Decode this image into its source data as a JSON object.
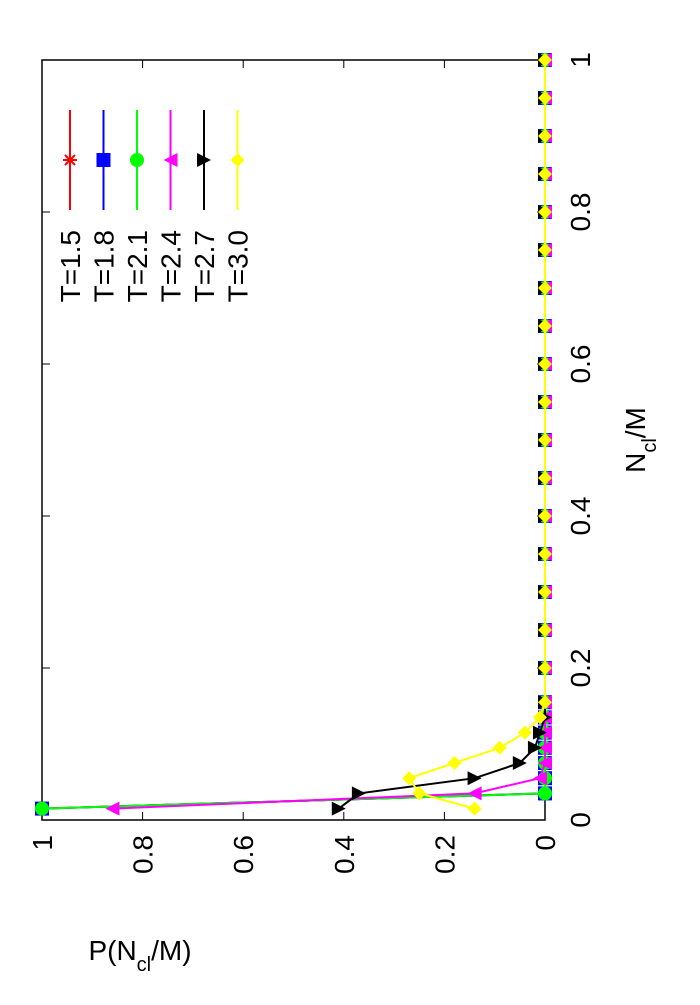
{
  "chart_data": {
    "type": "line",
    "xlabel": [
      "N",
      "cl",
      "/M"
    ],
    "ylabel": [
      "P(N",
      "cl",
      "/M)"
    ],
    "x": [
      0.015,
      0.035,
      0.055,
      0.075,
      0.095,
      0.115,
      0.135,
      0.155,
      0.2,
      0.25,
      0.3,
      0.35,
      0.4,
      0.45,
      0.5,
      0.55,
      0.6,
      0.65,
      0.7,
      0.75,
      0.8,
      0.85,
      0.9,
      0.95,
      1
    ],
    "series": [
      {
        "name": "T=1.5",
        "color": "#ff0000",
        "marker": "asterisk",
        "values": [
          1,
          0,
          0,
          0,
          0,
          0,
          0,
          0,
          0,
          0,
          0,
          0,
          0,
          0,
          0,
          0,
          0,
          0,
          0,
          0,
          0,
          0,
          0,
          0,
          0
        ]
      },
      {
        "name": "T=1.8",
        "color": "#0000ff",
        "marker": "square",
        "values": [
          1,
          0,
          0,
          0,
          0,
          0,
          0,
          0,
          0,
          0,
          0,
          0,
          0,
          0,
          0,
          0,
          0,
          0,
          0,
          0,
          0,
          0,
          0,
          0,
          0
        ]
      },
      {
        "name": "T=2.1",
        "color": "#00ff00",
        "marker": "circle",
        "values": [
          1,
          0,
          0,
          0,
          0,
          0,
          0,
          0,
          0,
          0,
          0,
          0,
          0,
          0,
          0,
          0,
          0,
          0,
          0,
          0,
          0,
          0,
          0,
          0,
          0
        ]
      },
      {
        "name": "T=2.4",
        "color": "#ff00ff",
        "marker": "triangle-up",
        "values": [
          0.86,
          0.14,
          0.01,
          0,
          0,
          0,
          0,
          0,
          0,
          0,
          0,
          0,
          0,
          0,
          0,
          0,
          0,
          0,
          0,
          0,
          0,
          0,
          0,
          0,
          0
        ]
      },
      {
        "name": "T=2.7",
        "color": "#000000",
        "marker": "triangle-down",
        "values": [
          0.41,
          0.37,
          0.14,
          0.05,
          0.02,
          0.01,
          0,
          0,
          0,
          0,
          0,
          0,
          0,
          0,
          0,
          0,
          0,
          0,
          0,
          0,
          0,
          0,
          0,
          0,
          0
        ]
      },
      {
        "name": "T=3.0",
        "color": "#ffff00",
        "marker": "diamond",
        "values": [
          0.14,
          0.25,
          0.27,
          0.18,
          0.09,
          0.04,
          0.01,
          0,
          0,
          0,
          0,
          0,
          0,
          0,
          0,
          0,
          0,
          0,
          0,
          0,
          0,
          0,
          0,
          0,
          0
        ]
      }
    ],
    "xlim": [
      0,
      1
    ],
    "ylim": [
      0,
      1
    ],
    "xticks": [
      0,
      0.2,
      0.4,
      0.6,
      0.8,
      1
    ],
    "yticks": [
      0,
      0.2,
      0.4,
      0.6,
      0.8,
      1
    ],
    "legend": "top-right",
    "rotation": -90
  }
}
